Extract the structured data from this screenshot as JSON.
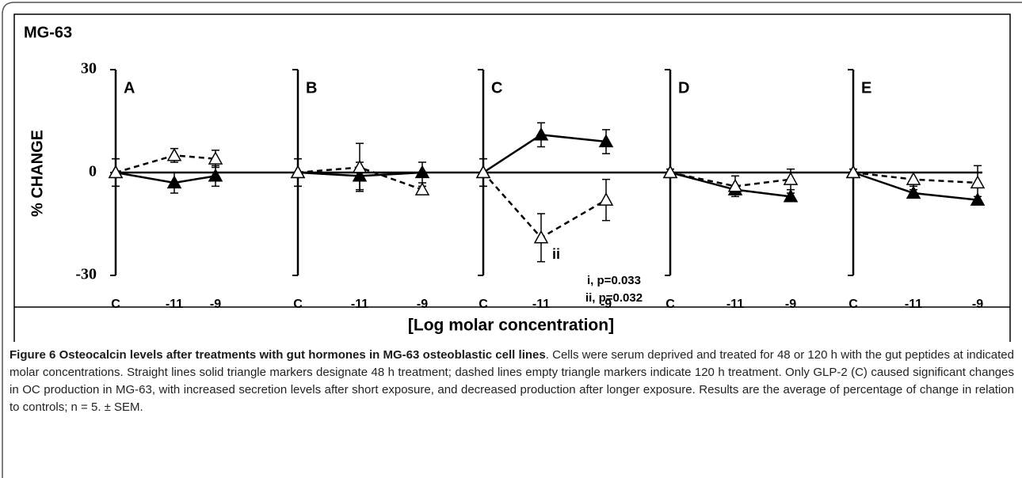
{
  "chart_data": {
    "type": "line",
    "title": "MG-63",
    "y_label": "% CHANGE",
    "x_label": "[Log molar concentration]",
    "ylim": [
      -30,
      30
    ],
    "yticks": [
      -30,
      0,
      30
    ],
    "panels": [
      {
        "label": "A",
        "categories": [
          "C",
          "-11",
          "-9"
        ],
        "series": [
          {
            "color": "#000000",
            "style": "solid",
            "marker": "filled",
            "values": [
              0,
              -3,
              -1
            ],
            "errors": [
              4,
              3,
              3
            ]
          },
          {
            "color": "#000000",
            "style": "dashed",
            "marker": "open",
            "values": [
              0,
              5,
              4
            ],
            "errors": [
              4,
              2,
              2.5
            ]
          }
        ]
      },
      {
        "label": "B",
        "categories": [
          "C",
          "-11",
          "-9"
        ],
        "series": [
          {
            "color": "#000000",
            "style": "solid",
            "marker": "filled",
            "values": [
              0,
              -1,
              0
            ],
            "errors": [
              4,
              4,
              3
            ]
          },
          {
            "color": "#000000",
            "style": "dashed",
            "marker": "open",
            "values": [
              0,
              1.5,
              -5
            ],
            "errors": [
              4,
              7,
              1
            ]
          }
        ]
      },
      {
        "label": "C",
        "categories": [
          "C",
          "-11",
          "-9"
        ],
        "series": [
          {
            "color": "#000000",
            "style": "solid",
            "marker": "filled",
            "values": [
              0,
              11,
              9
            ],
            "errors": [
              4,
              3.5,
              3.5
            ]
          },
          {
            "color": "#000000",
            "style": "dashed",
            "marker": "open",
            "values": [
              0,
              -19,
              -8
            ],
            "errors": [
              4,
              7,
              6
            ]
          }
        ]
      },
      {
        "label": "D",
        "categories": [
          "C",
          "-11",
          "-9"
        ],
        "series": [
          {
            "color": "#000000",
            "style": "solid",
            "marker": "filled",
            "values": [
              0,
              -5,
              -7
            ],
            "errors": [
              1,
              1,
              1
            ]
          },
          {
            "color": "#000000",
            "style": "dashed",
            "marker": "open",
            "values": [
              0,
              -4,
              -2
            ],
            "errors": [
              1,
              3,
              3
            ]
          }
        ]
      },
      {
        "label": "E",
        "categories": [
          "C",
          "-11",
          "-9"
        ],
        "series": [
          {
            "color": "#000000",
            "style": "solid",
            "marker": "filled",
            "values": [
              0,
              -6,
              -8
            ],
            "errors": [
              1,
              1,
              1
            ]
          },
          {
            "color": "#000000",
            "style": "dashed",
            "marker": "open",
            "values": [
              0,
              -2,
              -3
            ],
            "errors": [
              1,
              2,
              5
            ]
          }
        ]
      }
    ],
    "point_note": "ii",
    "notes": [
      "i, p=0.033",
      "ii, p=0.032"
    ]
  },
  "caption": {
    "label": "Figure 6",
    "title": "Osteocalcin levels after treatments with gut hormones in MG-63 osteoblastic cell lines",
    "text": ". Cells were serum deprived and treated for 48 or 120 h with the gut peptides at indicated molar concentrations. Straight lines solid triangle markers designate 48 h treatment; dashed lines empty triangle markers indicate 120 h treatment. Only GLP-2 (C) caused significant changes in OC production in MG-63, with increased secretion levels after short exposure, and decreased production after longer exposure. Results are the average of percentage of change in relation to controls; n = 5. ± SEM."
  }
}
